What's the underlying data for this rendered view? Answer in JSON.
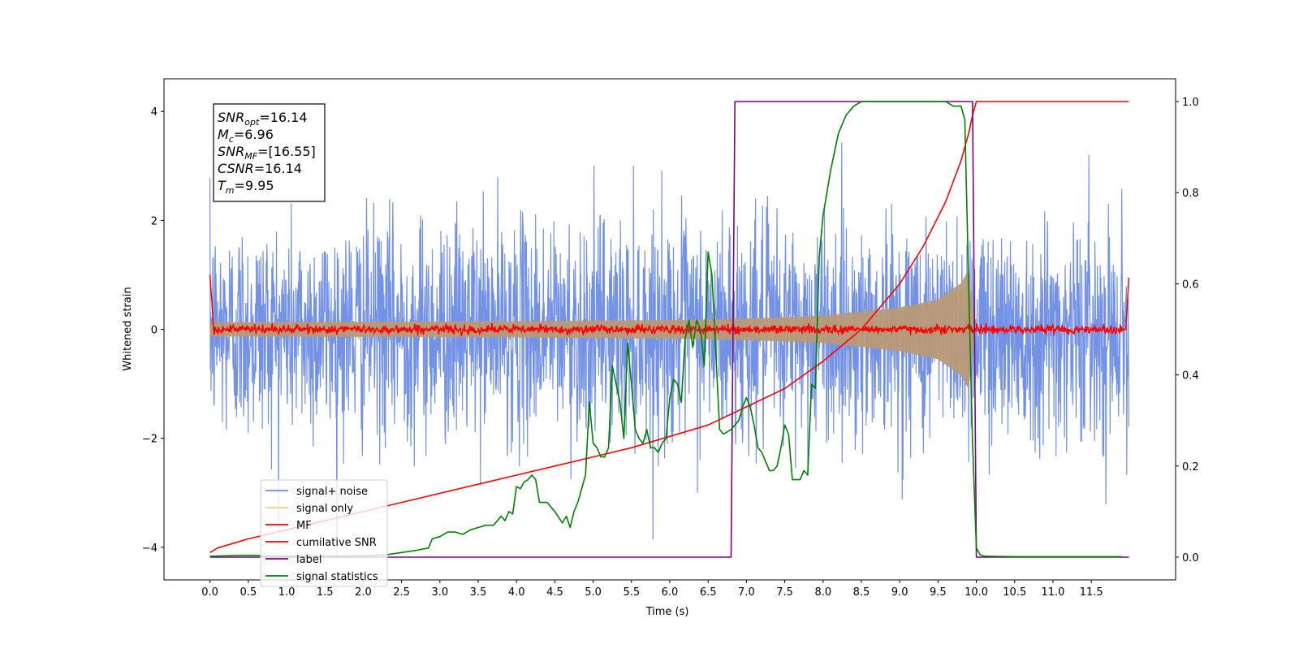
{
  "chart_data": {
    "type": "line",
    "xlabel": "Time (s)",
    "ylabel_left": "Whitened strain",
    "ylabel_right": "",
    "xlim": [
      -0.6,
      12.6
    ],
    "ylim_left": [
      -4.6,
      4.6
    ],
    "ylim_right": [
      -0.05,
      1.05
    ],
    "x_ticks": [
      "0.0",
      "0.5",
      "1.0",
      "1.5",
      "2.0",
      "2.5",
      "3.0",
      "3.5",
      "4.0",
      "4.5",
      "5.0",
      "5.5",
      "6.0",
      "6.5",
      "7.0",
      "7.5",
      "8.0",
      "8.5",
      "9.0",
      "9.5",
      "10.0",
      "10.5",
      "11.0",
      "11.5"
    ],
    "y_ticks_left": [
      "−4",
      "−2",
      "0",
      "2",
      "4"
    ],
    "y_ticks_right": [
      "0.0",
      "0.2",
      "0.4",
      "0.6",
      "0.8",
      "1.0"
    ],
    "grid": false,
    "legend_position": "lower-left",
    "annotation": {
      "lines": [
        {
          "sym": "SNR",
          "sub": "opt",
          "value": "=16.14"
        },
        {
          "sym": "M",
          "sub": "c",
          "value": "=6.96"
        },
        {
          "sym": "SNR",
          "sub": "MF",
          "value": "=[16.55]"
        },
        {
          "sym": "CSNR",
          "sub": "",
          "value": "=16.14"
        },
        {
          "sym": "T",
          "sub": "m",
          "value": "=9.95"
        }
      ]
    },
    "series": [
      {
        "name": "signal+ noise",
        "axis": "left",
        "color": "#6b8ce5",
        "style": "noise",
        "x_range": [
          0,
          11.99
        ],
        "amplitude_typical": 1.0,
        "peak_abs": 4.15
      },
      {
        "name": "signal only",
        "axis": "left",
        "color": "#f5cf7a",
        "style": "chirp",
        "envelope": {
          "x": [
            0,
            2,
            4,
            6,
            7,
            8,
            9,
            9.5,
            9.8,
            9.9,
            9.95,
            10.0
          ],
          "amp": [
            0.13,
            0.14,
            0.15,
            0.17,
            0.2,
            0.25,
            0.4,
            0.55,
            0.85,
            1.1,
            0.4,
            0
          ]
        }
      },
      {
        "name": "MF",
        "axis": "left",
        "color": "#ff0000",
        "style": "noise",
        "x_range": [
          0,
          11.99
        ],
        "amplitude_typical": 0.04,
        "edge_values": [
          1.0,
          0.95
        ]
      },
      {
        "name": "cumilative SNR",
        "axis": "right",
        "color": "#ff0000",
        "style": "line",
        "x": [
          0,
          0.1,
          0.5,
          1,
          1.5,
          2,
          2.5,
          3,
          3.5,
          4,
          4.5,
          5,
          5.5,
          6,
          6.5,
          7,
          7.5,
          8,
          8.5,
          9,
          9.3,
          9.6,
          9.8,
          9.9,
          9.95,
          10.0,
          11.99
        ],
        "y": [
          0.01,
          0.02,
          0.04,
          0.06,
          0.08,
          0.1,
          0.12,
          0.14,
          0.16,
          0.18,
          0.2,
          0.22,
          0.24,
          0.265,
          0.29,
          0.33,
          0.37,
          0.43,
          0.5,
          0.6,
          0.68,
          0.78,
          0.87,
          0.93,
          0.97,
          1.0,
          1.0
        ]
      },
      {
        "name": "label",
        "axis": "right",
        "color": "#800080",
        "style": "line",
        "x": [
          0,
          6.8,
          6.85,
          9.95,
          10.0,
          11.99
        ],
        "y": [
          0,
          0,
          1,
          1,
          0,
          0
        ]
      },
      {
        "name": "signal statistics",
        "axis": "right",
        "color": "#008000",
        "style": "line",
        "x": [
          0,
          0.5,
          1,
          1.5,
          2,
          2.3,
          2.5,
          2.7,
          2.85,
          2.9,
          3.0,
          3.1,
          3.2,
          3.3,
          3.4,
          3.5,
          3.6,
          3.7,
          3.8,
          3.85,
          3.9,
          3.95,
          4.0,
          4.05,
          4.1,
          4.15,
          4.2,
          4.25,
          4.3,
          4.35,
          4.4,
          4.5,
          4.6,
          4.65,
          4.7,
          4.75,
          4.8,
          4.9,
          4.95,
          5.0,
          5.05,
          5.1,
          5.15,
          5.2,
          5.25,
          5.3,
          5.35,
          5.4,
          5.45,
          5.5,
          5.55,
          5.6,
          5.65,
          5.7,
          5.75,
          5.8,
          5.85,
          5.9,
          5.95,
          6.0,
          6.05,
          6.1,
          6.15,
          6.2,
          6.25,
          6.3,
          6.35,
          6.4,
          6.45,
          6.5,
          6.55,
          6.6,
          6.65,
          6.7,
          6.8,
          6.9,
          6.95,
          7.0,
          7.05,
          7.1,
          7.15,
          7.2,
          7.3,
          7.35,
          7.4,
          7.45,
          7.5,
          7.55,
          7.6,
          7.65,
          7.7,
          7.75,
          7.8,
          7.85,
          7.9,
          7.95,
          8.0,
          8.1,
          8.2,
          8.3,
          8.4,
          8.5,
          8.6,
          8.7,
          8.8,
          9.0,
          9.2,
          9.4,
          9.6,
          9.7,
          9.8,
          9.85,
          9.9,
          9.95,
          10.0,
          10.05,
          10.1,
          10.5,
          11.0,
          11.5,
          11.9
        ],
        "y": [
          0.002,
          0.004,
          0.002,
          0.002,
          0.003,
          0.005,
          0.01,
          0.015,
          0.02,
          0.04,
          0.045,
          0.055,
          0.055,
          0.05,
          0.06,
          0.065,
          0.07,
          0.07,
          0.09,
          0.08,
          0.1,
          0.095,
          0.155,
          0.15,
          0.165,
          0.17,
          0.18,
          0.17,
          0.12,
          0.12,
          0.12,
          0.1,
          0.075,
          0.09,
          0.065,
          0.1,
          0.12,
          0.18,
          0.34,
          0.25,
          0.24,
          0.22,
          0.22,
          0.24,
          0.42,
          0.38,
          0.34,
          0.26,
          0.47,
          0.38,
          0.28,
          0.26,
          0.25,
          0.28,
          0.24,
          0.24,
          0.23,
          0.25,
          0.26,
          0.35,
          0.39,
          0.38,
          0.34,
          0.48,
          0.52,
          0.46,
          0.52,
          0.5,
          0.42,
          0.67,
          0.62,
          0.45,
          0.28,
          0.27,
          0.28,
          0.3,
          0.33,
          0.35,
          0.33,
          0.29,
          0.24,
          0.23,
          0.19,
          0.19,
          0.2,
          0.24,
          0.29,
          0.27,
          0.17,
          0.17,
          0.17,
          0.19,
          0.18,
          0.38,
          0.37,
          0.66,
          0.75,
          0.85,
          0.93,
          0.97,
          0.99,
          1.0,
          1.0,
          1.0,
          1.0,
          1.0,
          1.0,
          1.0,
          1.0,
          0.99,
          0.99,
          0.96,
          0.6,
          0.25,
          0.02,
          0.005,
          0.002,
          0.001,
          0.001,
          0.001,
          0.001
        ]
      }
    ]
  }
}
